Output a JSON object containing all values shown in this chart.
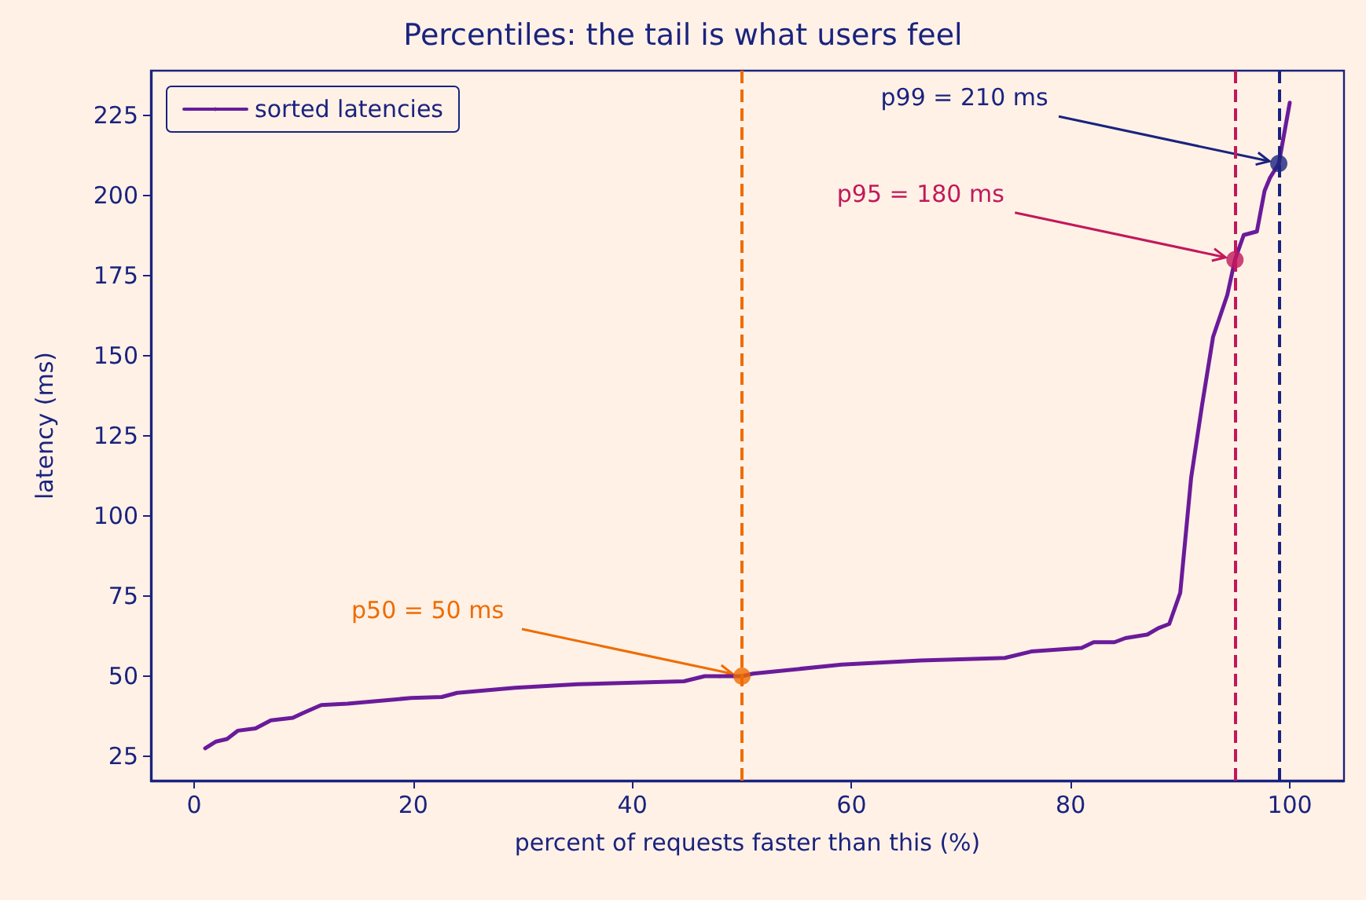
{
  "chart_data": {
    "type": "line",
    "title": "Percentiles: the tail is what users feel",
    "xlabel": "percent of requests faster than this (%)",
    "ylabel": "latency (ms)",
    "series": [
      {
        "name": "sorted latencies",
        "color": "#6a1b9a",
        "x": [
          1,
          2,
          3,
          4,
          5.6,
          7,
          9,
          10,
          11.6,
          14,
          19.8,
          22.6,
          24,
          29.3,
          35,
          44.7,
          46.6,
          50,
          51,
          59.1,
          66.3,
          74,
          76.4,
          81,
          82.1,
          84,
          85,
          87,
          88,
          89,
          90,
          91,
          92,
          93,
          94.3,
          95,
          95.8,
          97,
          97.7,
          98.2,
          99,
          100
        ],
        "values": [
          27.5,
          29.6,
          30.4,
          33,
          33.7,
          36.2,
          37,
          38.6,
          41,
          41.4,
          43.2,
          43.5,
          44.8,
          46.4,
          47.5,
          48.4,
          50,
          50,
          50.8,
          53.6,
          54.9,
          55.7,
          57.7,
          58.8,
          60.6,
          60.6,
          61.9,
          63,
          65,
          66.3,
          76,
          112,
          134.7,
          155.9,
          169,
          180,
          187.7,
          188.8,
          201.5,
          205.6,
          210,
          229
        ]
      },
      {
        "type": "scatter",
        "marker": "circle",
        "color": "#ef6c00",
        "x": [
          50
        ],
        "values": [
          50
        ]
      },
      {
        "type": "scatter",
        "marker": "circle",
        "color": "#c2185b",
        "x": [
          95
        ],
        "values": [
          180
        ]
      },
      {
        "type": "scatter",
        "marker": "circle",
        "color": "#1a237e",
        "x": [
          99
        ],
        "values": [
          210
        ]
      }
    ],
    "xlim": [
      -3.95,
      104.95
    ],
    "xticks": [
      0,
      20,
      40,
      60,
      80,
      100
    ],
    "ylim": [
      17.4,
      239
    ],
    "yticks": [
      25,
      50,
      75,
      100,
      125,
      150,
      175,
      200,
      225
    ],
    "ref_lines": [
      {
        "axis": "x",
        "value": 50,
        "color": "#ef6c00",
        "line_style": "dashed"
      },
      {
        "axis": "x",
        "value": 95,
        "color": "#c2185b",
        "line_style": "dashed"
      },
      {
        "axis": "x",
        "value": 99,
        "color": "#1a237e",
        "line_style": "dashed"
      }
    ],
    "annotations": [
      {
        "text": "p50 = 50 ms",
        "x": 50,
        "y": 50
      },
      {
        "text": "p95 = 180 ms",
        "x": 95,
        "y": 180
      },
      {
        "text": "p99 = 210 ms",
        "x": 99,
        "y": 210
      }
    ],
    "legend": "top left",
    "grid": false,
    "marker": "none"
  }
}
